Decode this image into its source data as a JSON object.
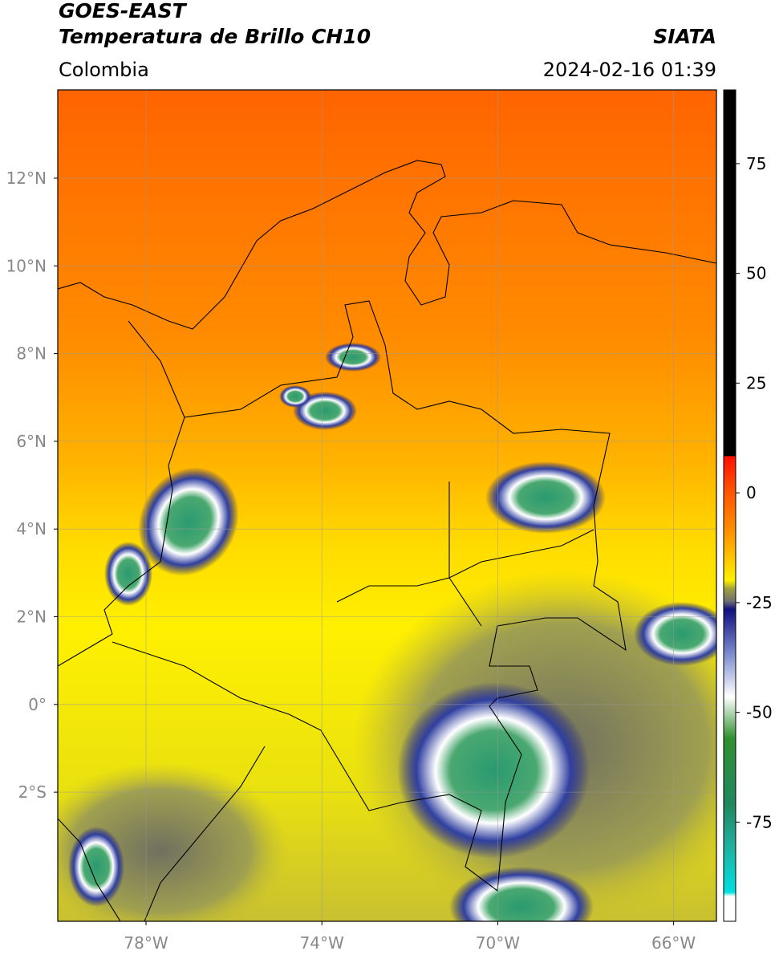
{
  "header": {
    "title": "GOES-EAST",
    "subtitle": "Temperatura de Brillo CH10",
    "brand": "SIATA",
    "region": "Colombia",
    "timestamp": "2024-02-16 01:39"
  },
  "map": {
    "lat_labels": [
      "12°N",
      "10°N",
      "8°N",
      "6°N",
      "4°N",
      "2°N",
      "0°",
      "2°S"
    ],
    "lon_labels": [
      "78°W",
      "74°W",
      "70°W",
      "66°W"
    ]
  },
  "colorbar": {
    "range": [
      -97.6,
      91.8
    ],
    "ticks": [
      75,
      50,
      25,
      0,
      -25,
      -50,
      -75
    ]
  }
}
